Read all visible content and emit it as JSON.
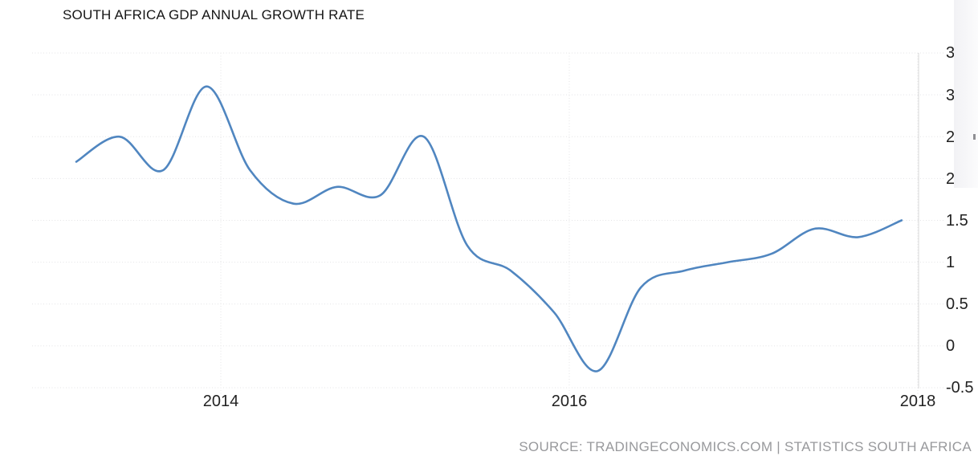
{
  "title": "SOUTH AFRICA GDP ANNUAL GROWTH RATE",
  "source_attribution": "SOURCE: TRADINGECONOMICS.COM | STATISTICS SOUTH AFRICA",
  "y_axis_labels": [
    "3.5",
    "3",
    "2.5",
    "2",
    "1.5",
    "1",
    "0.5",
    "0",
    "-0.5"
  ],
  "x_axis_labels": [
    "2014",
    "2016",
    "2018"
  ],
  "colors": {
    "line": "#5086c0",
    "grid": "#e4e4e6",
    "axis": "#d9d9d9",
    "label_text": "#222222",
    "source_text": "#98999c",
    "background": "#ffffff"
  },
  "chart_data": {
    "type": "line",
    "title": "SOUTH AFRICA GDP ANNUAL GROWTH RATE",
    "x": [
      "2013-Q1",
      "2013-Q2",
      "2013-Q3",
      "2013-Q4",
      "2014-Q1",
      "2014-Q2",
      "2014-Q3",
      "2014-Q4",
      "2015-Q1",
      "2015-Q2",
      "2015-Q3",
      "2015-Q4",
      "2016-Q1",
      "2016-Q2",
      "2016-Q3",
      "2016-Q4",
      "2017-Q1",
      "2017-Q2",
      "2017-Q3",
      "2017-Q4"
    ],
    "series": [
      {
        "name": "South Africa GDP Annual Growth Rate (%)",
        "values": [
          2.2,
          2.5,
          2.1,
          3.1,
          2.1,
          1.7,
          1.9,
          1.8,
          2.5,
          1.2,
          0.9,
          0.4,
          -0.3,
          0.7,
          0.9,
          1.0,
          1.1,
          1.4,
          1.3,
          1.5
        ]
      }
    ],
    "xlabel": "",
    "ylabel": "",
    "ylim": [
      -0.5,
      3.5
    ],
    "y_tick_step": 0.5,
    "x_tick_labels": [
      "2014",
      "2016",
      "2018"
    ],
    "grid": true,
    "legend": false,
    "line_smooth": true,
    "y_axis_position": "right"
  }
}
